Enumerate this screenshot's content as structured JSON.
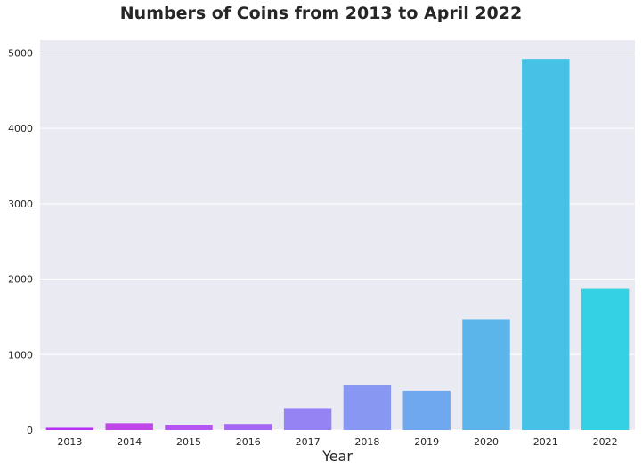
{
  "chart_data": {
    "type": "bar",
    "title": "Numbers of Coins from 2013 to April 2022",
    "xlabel": "Year",
    "ylabel": "",
    "categories": [
      "2013",
      "2014",
      "2015",
      "2016",
      "2017",
      "2018",
      "2019",
      "2020",
      "2021",
      "2022"
    ],
    "values": [
      30,
      90,
      65,
      80,
      290,
      600,
      520,
      1470,
      4920,
      1870
    ],
    "ylim": [
      0,
      5170
    ],
    "yticks": [
      0,
      1000,
      2000,
      3000,
      4000,
      5000
    ],
    "grid": true,
    "background": "#eaeaf2",
    "colors": [
      "#b732f2",
      "#c145e9",
      "#b255f2",
      "#a466f3",
      "#9583f4",
      "#8797f2",
      "#70a8ef",
      "#5bb4ea",
      "#47c1e6",
      "#33d1e3"
    ]
  }
}
